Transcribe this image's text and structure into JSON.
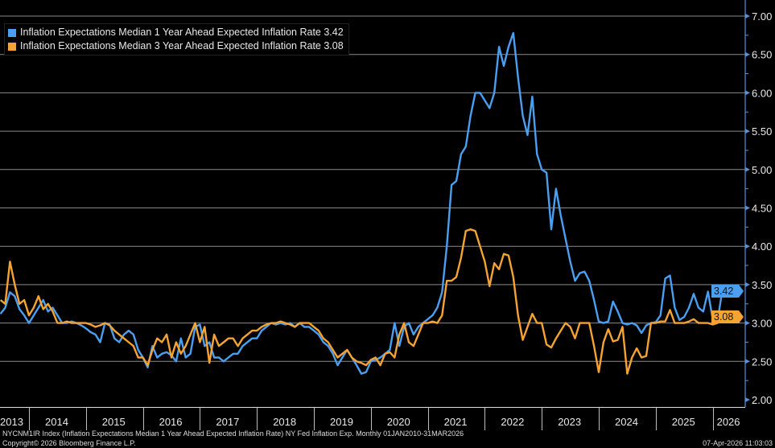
{
  "chart_data": {
    "type": "line",
    "title": "",
    "xlabel": "",
    "ylabel": "",
    "x_start": "2013-07",
    "frequency": "monthly",
    "x_end": "2026-03",
    "ylim": [
      2.0,
      7.0
    ],
    "yticks": [
      "2.00",
      "2.50",
      "3.00",
      "3.50",
      "4.00",
      "4.50",
      "5.00",
      "5.50",
      "6.00",
      "6.50",
      "7.00"
    ],
    "xtick_labels": [
      "2013",
      "2014",
      "2015",
      "2016",
      "2017",
      "2018",
      "2019",
      "2020",
      "2021",
      "2022",
      "2023",
      "2024",
      "2025",
      "2026"
    ],
    "grid": true,
    "legend_position": "top-left",
    "series": [
      {
        "name": "Inflation Expectations Median 1 Year Ahead Expected Inflation Rate",
        "last": "3.42",
        "color": "#4a9ff0",
        "values": [
          3.12,
          3.2,
          3.4,
          3.35,
          3.18,
          3.1,
          3.0,
          3.1,
          3.2,
          3.3,
          3.15,
          3.2,
          3.1,
          3.0,
          3.0,
          3.02,
          3.0,
          2.97,
          2.93,
          2.88,
          2.85,
          2.75,
          3.0,
          2.98,
          2.8,
          2.75,
          2.85,
          2.9,
          2.85,
          2.65,
          2.55,
          2.42,
          2.7,
          2.55,
          2.6,
          2.62,
          2.58,
          2.5,
          2.8,
          2.55,
          2.6,
          2.95,
          2.98,
          2.7,
          2.75,
          2.55,
          2.55,
          2.5,
          2.55,
          2.6,
          2.6,
          2.7,
          2.75,
          2.8,
          2.8,
          2.9,
          2.95,
          3.0,
          2.98,
          3.0,
          2.98,
          3.0,
          2.95,
          3.0,
          2.95,
          2.95,
          2.9,
          2.85,
          2.75,
          2.7,
          2.6,
          2.45,
          2.55,
          2.65,
          2.55,
          2.45,
          2.34,
          2.36,
          2.5,
          2.52,
          2.55,
          2.6,
          2.65,
          3.0,
          2.7,
          2.95,
          3.0,
          2.85,
          2.95,
          3.0,
          3.05,
          3.1,
          3.2,
          3.4,
          4.0,
          4.8,
          4.85,
          5.2,
          5.3,
          5.7,
          6.0,
          6.0,
          5.9,
          5.8,
          6.0,
          6.6,
          6.35,
          6.6,
          6.78,
          6.2,
          5.7,
          5.45,
          5.95,
          5.2,
          5.0,
          4.96,
          4.22,
          4.75,
          4.4,
          4.1,
          3.8,
          3.55,
          3.65,
          3.67,
          3.55,
          3.3,
          3.02,
          3.0,
          3.02,
          3.28,
          3.15,
          3.0,
          2.98,
          3.0,
          2.97,
          2.87,
          2.97,
          3.0,
          3.01,
          3.1,
          3.58,
          3.62,
          3.2,
          3.04,
          3.08,
          3.2,
          3.38,
          3.2,
          3.15,
          3.41,
          3.05,
          3.02,
          3.42
        ]
      },
      {
        "name": "Inflation Expectations Median 3 Year Ahead Expected Inflation Rate",
        "last": "3.08",
        "color": "#f5a332",
        "values": [
          3.3,
          3.25,
          3.8,
          3.5,
          3.25,
          3.3,
          3.1,
          3.2,
          3.35,
          3.18,
          3.25,
          3.15,
          3.0,
          3.0,
          3.02,
          3.0,
          3.0,
          3.0,
          3.0,
          2.98,
          2.95,
          2.97,
          3.0,
          2.97,
          2.9,
          2.85,
          2.8,
          2.75,
          2.7,
          2.55,
          2.55,
          2.45,
          2.65,
          2.8,
          2.75,
          2.85,
          2.55,
          2.75,
          2.6,
          2.7,
          2.85,
          3.0,
          2.75,
          2.95,
          2.48,
          2.85,
          2.7,
          2.75,
          2.8,
          2.8,
          2.7,
          2.8,
          2.85,
          2.9,
          2.9,
          2.95,
          2.98,
          3.0,
          3.0,
          3.02,
          3.0,
          2.98,
          2.95,
          3.0,
          3.0,
          3.0,
          2.95,
          2.9,
          2.8,
          2.75,
          2.65,
          2.55,
          2.6,
          2.65,
          2.55,
          2.5,
          2.48,
          2.45,
          2.52,
          2.55,
          2.45,
          2.6,
          2.62,
          2.55,
          2.85,
          3.0,
          2.75,
          2.7,
          2.85,
          3.0,
          3.0,
          3.02,
          3.0,
          3.1,
          3.55,
          3.55,
          3.6,
          3.85,
          4.2,
          4.22,
          4.2,
          4.0,
          3.8,
          3.48,
          3.78,
          3.7,
          3.9,
          3.88,
          3.6,
          3.1,
          2.78,
          2.95,
          3.12,
          3.0,
          3.0,
          2.72,
          2.68,
          2.8,
          2.9,
          3.0,
          2.95,
          2.8,
          3.0,
          3.0,
          3.0,
          2.7,
          2.36,
          2.75,
          2.92,
          2.76,
          2.78,
          2.95,
          2.34,
          2.55,
          2.67,
          2.55,
          2.57,
          3.0,
          3.0,
          3.02,
          3.02,
          3.17,
          3.0,
          3.0,
          3.0,
          3.02,
          3.05,
          3.0,
          3.0,
          3.0,
          2.98,
          3.0,
          3.08
        ]
      }
    ]
  },
  "legend": {
    "item1": "Inflation Expectations Median 1 Year Ahead Expected Inflation Rate 3.42",
    "item2": "Inflation Expectations Median 3 Year Ahead Expected Inflation Rate 3.08"
  },
  "tags": {
    "blue": "3.42",
    "orange": "3.08"
  },
  "footer": {
    "description": "NYCNM1IR Index (Inflation Expectations Median 1 Year Ahead Expected Inflation Rate) NY Fed Inflation Exp. Monthly 01JAN2010-31MAR2026",
    "copyright": "Copyright© 2026 Bloomberg Finance L.P.",
    "timestamp": "07-Apr-2026 11:03:03"
  }
}
